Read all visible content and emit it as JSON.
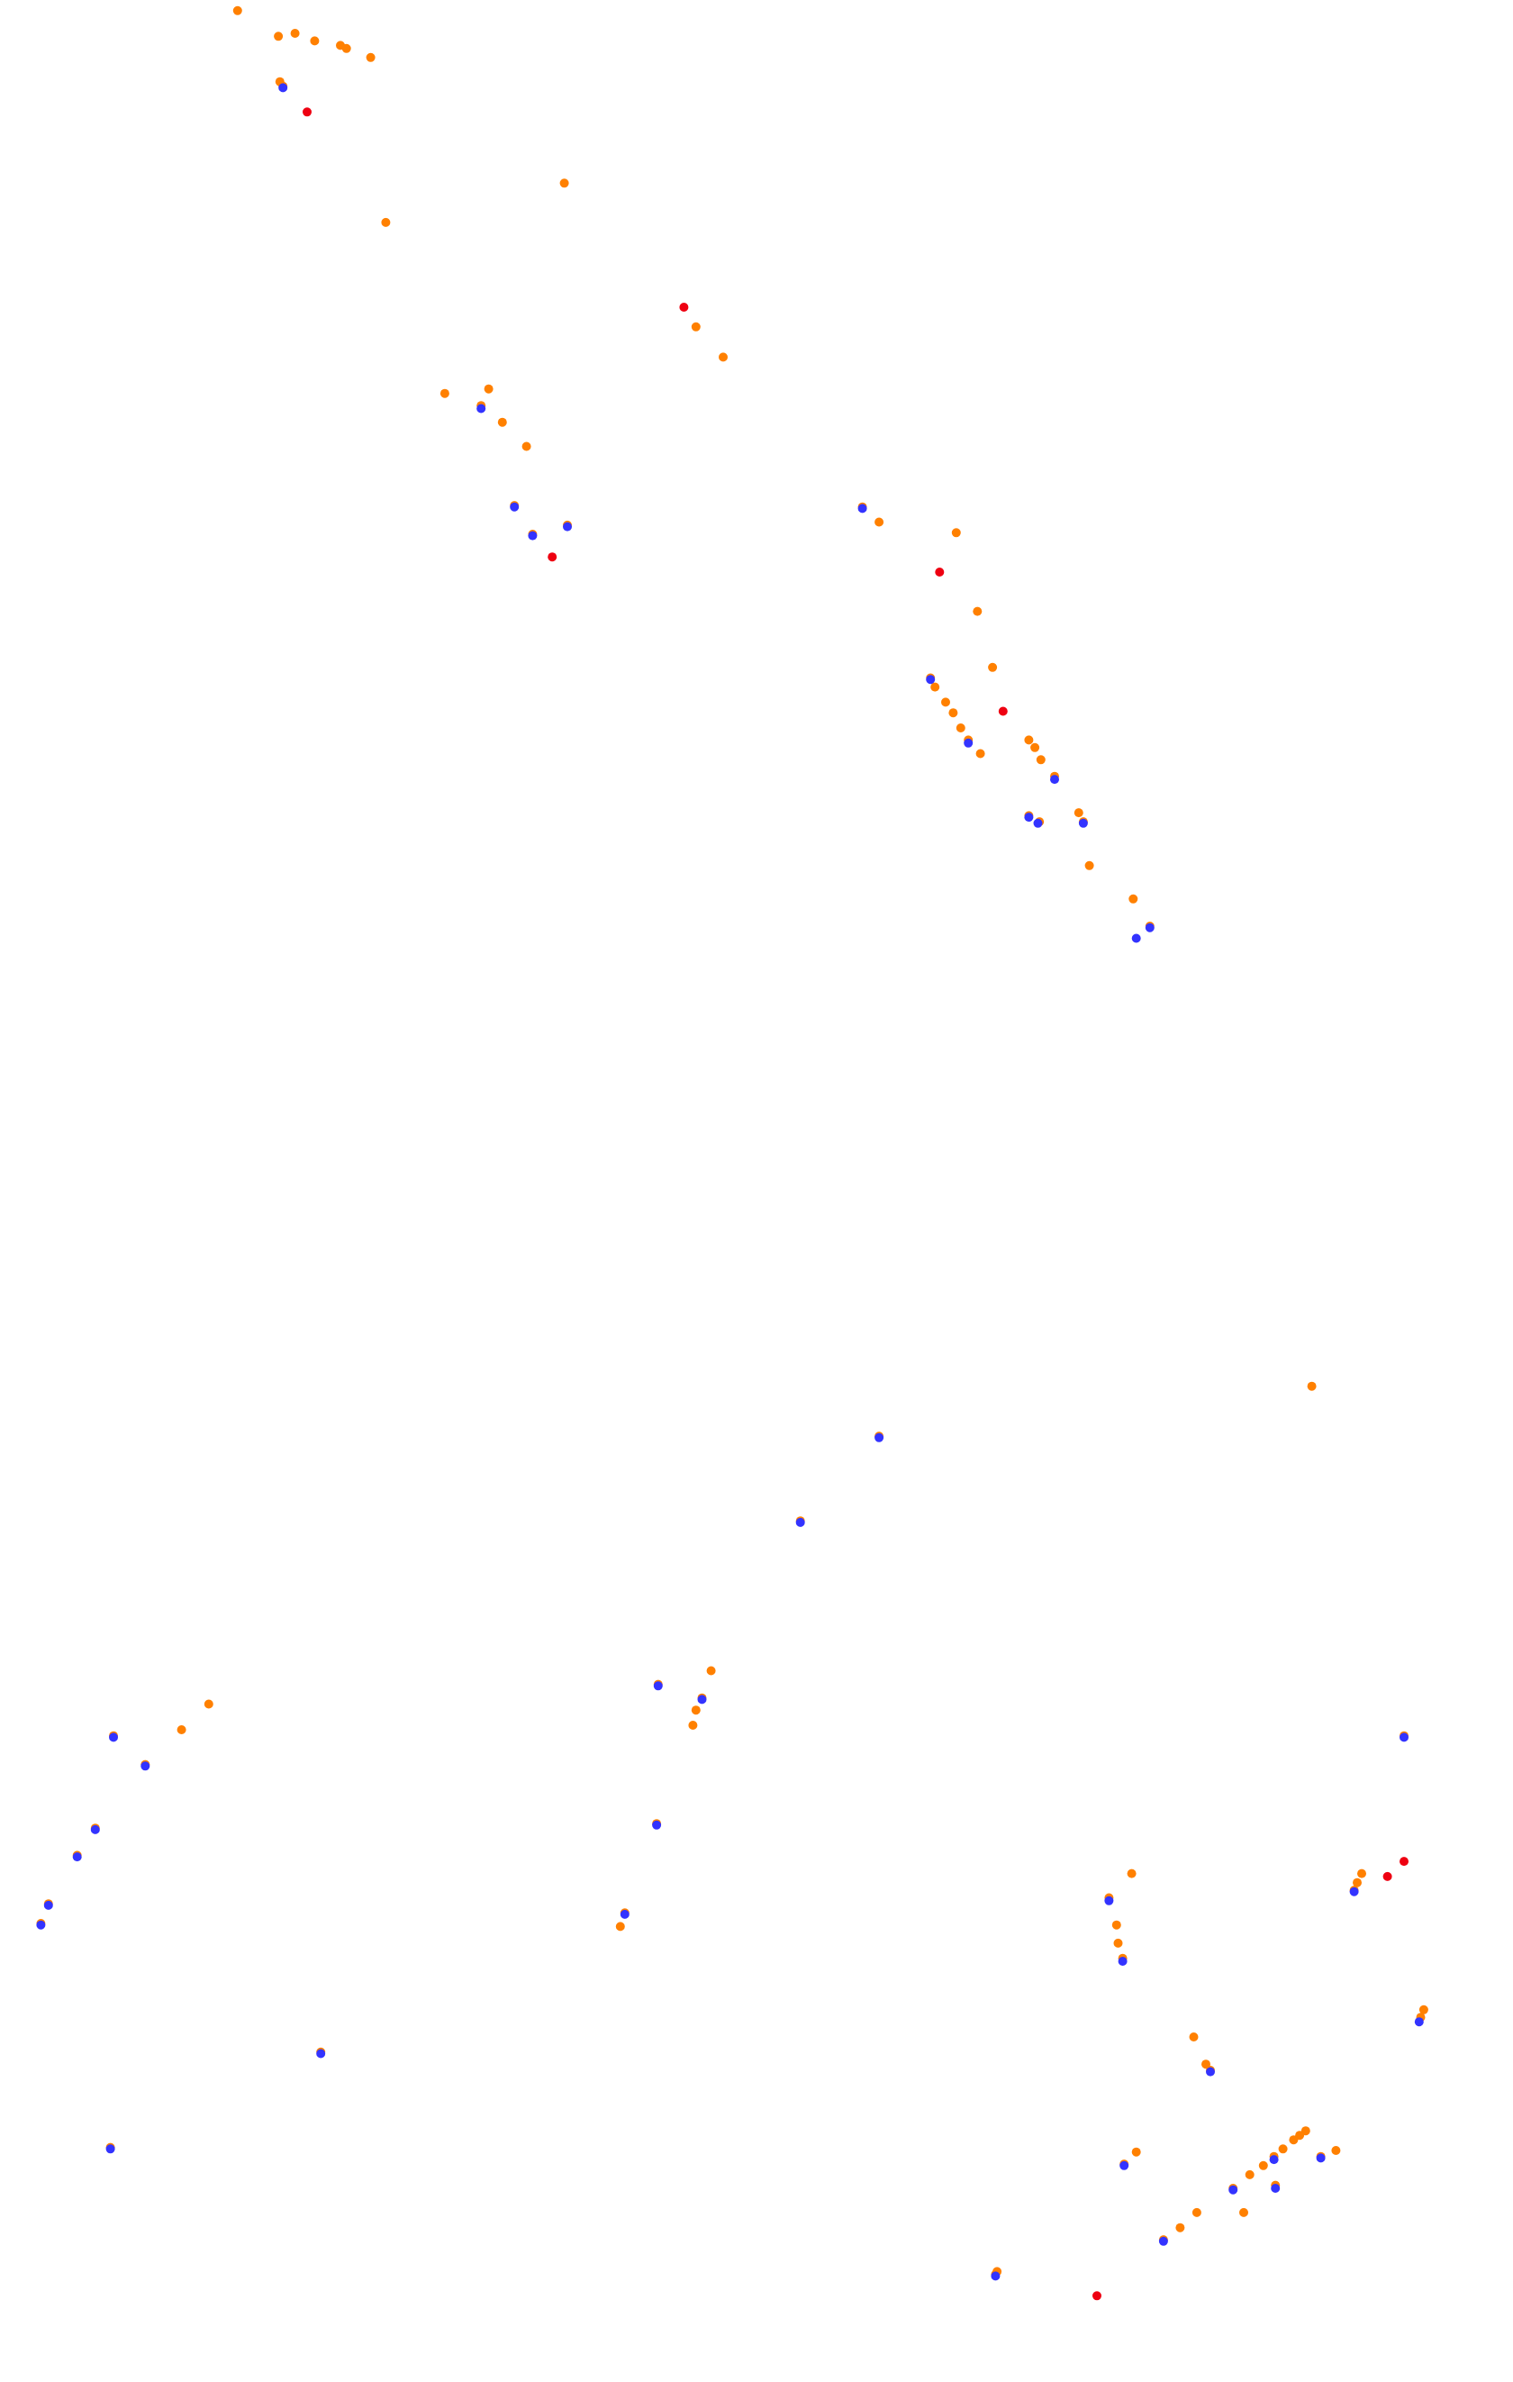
{
  "chart_data": {
    "type": "scatter",
    "title": "",
    "xlabel": "",
    "ylabel": "",
    "grid": false,
    "axes_visible": false,
    "legend": "none",
    "xlim": [
      0,
      1000
    ],
    "ylim": [
      0,
      1574
    ],
    "y_inverted": true,
    "colors": {
      "background": "#ffffff",
      "orange": "#ff8000",
      "blue": "#3333ff",
      "red": "#ee0011"
    },
    "series": [
      {
        "color": "orange",
        "points": [
          [
            157,
            7
          ],
          [
            184,
            24
          ],
          [
            195,
            22
          ],
          [
            208,
            27
          ],
          [
            225,
            30
          ],
          [
            229,
            32
          ],
          [
            245,
            38
          ],
          [
            185,
            54
          ],
          [
            187,
            57
          ],
          [
            373,
            121
          ],
          [
            255,
            147
          ],
          [
            460,
            216
          ],
          [
            478,
            236
          ],
          [
            294,
            260
          ],
          [
            323,
            257
          ],
          [
            318,
            268
          ],
          [
            332,
            279
          ],
          [
            348,
            295
          ],
          [
            340,
            334
          ],
          [
            352,
            353
          ],
          [
            375,
            347
          ],
          [
            570,
            335
          ],
          [
            581,
            345
          ],
          [
            632,
            352
          ],
          [
            646,
            404
          ],
          [
            656,
            441
          ],
          [
            615,
            448
          ],
          [
            618,
            454
          ],
          [
            625,
            464
          ],
          [
            630,
            471
          ],
          [
            635,
            481
          ],
          [
            640,
            489
          ],
          [
            648,
            498
          ],
          [
            680,
            489
          ],
          [
            684,
            494
          ],
          [
            688,
            502
          ],
          [
            697,
            513
          ],
          [
            680,
            539
          ],
          [
            687,
            543
          ],
          [
            713,
            537
          ],
          [
            716,
            543
          ],
          [
            720,
            572
          ],
          [
            749,
            594
          ],
          [
            760,
            612
          ],
          [
            867,
            916
          ],
          [
            581,
            949
          ],
          [
            529,
            1005
          ],
          [
            470,
            1104
          ],
          [
            435,
            1113
          ],
          [
            464,
            1122
          ],
          [
            460,
            1130
          ],
          [
            458,
            1140
          ],
          [
            434,
            1205
          ],
          [
            413,
            1264
          ],
          [
            410,
            1273
          ],
          [
            928,
            1147
          ],
          [
            138,
            1126
          ],
          [
            120,
            1143
          ],
          [
            75,
            1147
          ],
          [
            96,
            1166
          ],
          [
            63,
            1208
          ],
          [
            51,
            1226
          ],
          [
            32,
            1258
          ],
          [
            27,
            1271
          ],
          [
            212,
            1356
          ],
          [
            73,
            1419
          ],
          [
            748,
            1238
          ],
          [
            733,
            1254
          ],
          [
            738,
            1272
          ],
          [
            739,
            1284
          ],
          [
            742,
            1294
          ],
          [
            900,
            1238
          ],
          [
            897,
            1244
          ],
          [
            895,
            1249
          ],
          [
            941,
            1328
          ],
          [
            939,
            1333
          ],
          [
            789,
            1346
          ],
          [
            797,
            1364
          ],
          [
            800,
            1368
          ],
          [
            751,
            1422
          ],
          [
            743,
            1430
          ],
          [
            863,
            1408
          ],
          [
            859,
            1411
          ],
          [
            855,
            1414
          ],
          [
            848,
            1420
          ],
          [
            842,
            1425
          ],
          [
            835,
            1431
          ],
          [
            826,
            1437
          ],
          [
            815,
            1446
          ],
          [
            822,
            1462
          ],
          [
            843,
            1444
          ],
          [
            873,
            1425
          ],
          [
            883,
            1421
          ],
          [
            791,
            1462
          ],
          [
            780,
            1472
          ],
          [
            769,
            1480
          ],
          [
            659,
            1501
          ],
          [
            658,
            1503
          ]
        ]
      },
      {
        "color": "blue",
        "points": [
          [
            187,
            58
          ],
          [
            318,
            270
          ],
          [
            340,
            335
          ],
          [
            352,
            354
          ],
          [
            375,
            348
          ],
          [
            570,
            336
          ],
          [
            615,
            449
          ],
          [
            640,
            491
          ],
          [
            697,
            515
          ],
          [
            680,
            540
          ],
          [
            686,
            544
          ],
          [
            716,
            544
          ],
          [
            751,
            620
          ],
          [
            760,
            613
          ],
          [
            529,
            1006
          ],
          [
            581,
            950
          ],
          [
            435,
            1114
          ],
          [
            464,
            1123
          ],
          [
            434,
            1206
          ],
          [
            413,
            1265
          ],
          [
            928,
            1148
          ],
          [
            75,
            1148
          ],
          [
            96,
            1167
          ],
          [
            63,
            1209
          ],
          [
            51,
            1227
          ],
          [
            32,
            1259
          ],
          [
            27,
            1272
          ],
          [
            212,
            1357
          ],
          [
            73,
            1420
          ],
          [
            733,
            1256
          ],
          [
            742,
            1296
          ],
          [
            895,
            1250
          ],
          [
            938,
            1336
          ],
          [
            800,
            1369
          ],
          [
            743,
            1431
          ],
          [
            842,
            1427
          ],
          [
            843,
            1446
          ],
          [
            815,
            1447
          ],
          [
            873,
            1426
          ],
          [
            769,
            1481
          ],
          [
            658,
            1504
          ]
        ]
      },
      {
        "color": "red",
        "points": [
          [
            203,
            74
          ],
          [
            452,
            203
          ],
          [
            365,
            368
          ],
          [
            621,
            378
          ],
          [
            663,
            470
          ],
          [
            928,
            1230
          ],
          [
            917,
            1240
          ],
          [
            725,
            1517
          ]
        ]
      }
    ]
  }
}
